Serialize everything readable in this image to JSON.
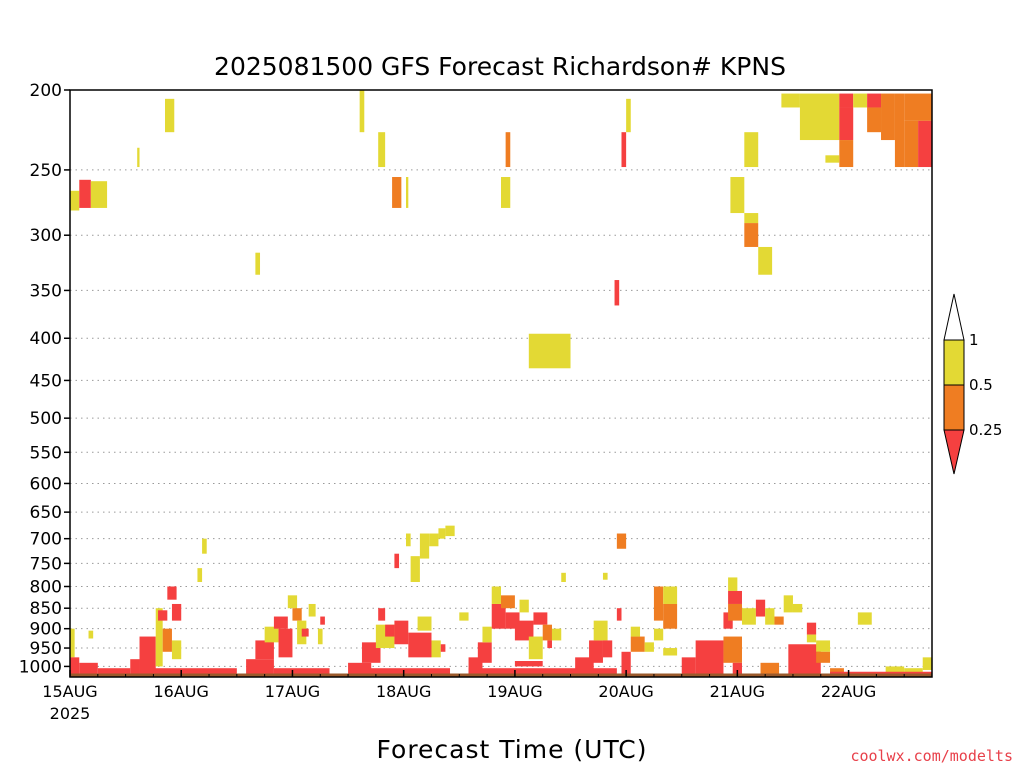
{
  "chart_data": {
    "type": "heatmap",
    "title": "2025081500 GFS Forecast Richardson# KPNS",
    "xlabel": "Forecast Time (UTC)",
    "ylabel": "",
    "credit": "coolwx.com/modelts",
    "x_unit": "hours since 15AUG 00Z",
    "xlim": [
      0,
      186
    ],
    "x_ticks": [
      {
        "label": "15AUG",
        "sublabel": "2025",
        "x": 0
      },
      {
        "label": "16AUG",
        "x": 24
      },
      {
        "label": "17AUG",
        "x": 48
      },
      {
        "label": "18AUG",
        "x": 72
      },
      {
        "label": "19AUG",
        "x": 96
      },
      {
        "label": "20AUG",
        "x": 120
      },
      {
        "label": "21AUG",
        "x": 144
      },
      {
        "label": "22AUG",
        "x": 168
      }
    ],
    "y_axis": "pressure (hPa), log scale, inverted",
    "ylim": [
      1030,
      200
    ],
    "y_ticks": [
      200,
      250,
      300,
      350,
      400,
      450,
      500,
      550,
      600,
      650,
      700,
      750,
      800,
      850,
      900,
      950,
      1000
    ],
    "grid": "dotted horizontal at pressure ticks",
    "colorbar": {
      "placement": "right",
      "levels": [
        "1",
        "0.5",
        "0.25"
      ],
      "bins": [
        {
          "range": "> 1",
          "color": "#ffffff"
        },
        {
          "range": "0.5 - 1",
          "color": "#e3d934"
        },
        {
          "range": "0.25 - 0.5",
          "color": "#ef7d22"
        },
        {
          "range": "< 0.25",
          "color": "#f54040"
        }
      ]
    },
    "ground_color": "#9b5a2c",
    "cells": [
      {
        "x0": 0,
        "x1": 2,
        "p0": 265,
        "p1": 280,
        "c": "y"
      },
      {
        "x0": 2,
        "x1": 4.5,
        "p0": 257,
        "p1": 278,
        "c": "r"
      },
      {
        "x0": 4.5,
        "x1": 8,
        "p0": 258,
        "p1": 278,
        "c": "y"
      },
      {
        "x0": 14.5,
        "x1": 15,
        "p0": 235,
        "p1": 248,
        "c": "y"
      },
      {
        "x0": 20.5,
        "x1": 22.5,
        "p0": 205,
        "p1": 225,
        "c": "y"
      },
      {
        "x0": 40,
        "x1": 41,
        "p0": 315,
        "p1": 335,
        "c": "y"
      },
      {
        "x0": 62.5,
        "x1": 63.5,
        "p0": 200,
        "p1": 225,
        "c": "y"
      },
      {
        "x0": 66.5,
        "x1": 68,
        "p0": 225,
        "p1": 248,
        "c": "y"
      },
      {
        "x0": 69.5,
        "x1": 71.5,
        "p0": 255,
        "p1": 278,
        "c": "o"
      },
      {
        "x0": 72.5,
        "x1": 73,
        "p0": 255,
        "p1": 278,
        "c": "y"
      },
      {
        "x0": 93,
        "x1": 95,
        "p0": 255,
        "p1": 278,
        "c": "y"
      },
      {
        "x0": 94,
        "x1": 95,
        "p0": 225,
        "p1": 248,
        "c": "o"
      },
      {
        "x0": 99,
        "x1": 108,
        "p0": 395,
        "p1": 435,
        "c": "y"
      },
      {
        "x0": 119,
        "x1": 120,
        "p0": 225,
        "p1": 248,
        "c": "r"
      },
      {
        "x0": 120,
        "x1": 121,
        "p0": 205,
        "p1": 225,
        "c": "y"
      },
      {
        "x0": 117.5,
        "x1": 118.5,
        "p0": 340,
        "p1": 365,
        "c": "r"
      },
      {
        "x0": 142.5,
        "x1": 145.5,
        "p0": 255,
        "p1": 282,
        "c": "y"
      },
      {
        "x0": 145.5,
        "x1": 148.5,
        "p0": 225,
        "p1": 248,
        "c": "y"
      },
      {
        "x0": 145.5,
        "x1": 148.5,
        "p0": 282,
        "p1": 290,
        "c": "y"
      },
      {
        "x0": 145.5,
        "x1": 148.5,
        "p0": 290,
        "p1": 310,
        "c": "o"
      },
      {
        "x0": 148.5,
        "x1": 151.5,
        "p0": 310,
        "p1": 335,
        "c": "y"
      },
      {
        "x0": 153.5,
        "x1": 157.5,
        "p0": 202,
        "p1": 210,
        "c": "y"
      },
      {
        "x0": 157.5,
        "x1": 166,
        "p0": 202,
        "p1": 230,
        "c": "y"
      },
      {
        "x0": 166,
        "x1": 169,
        "p0": 202,
        "p1": 210,
        "c": "r"
      },
      {
        "x0": 166,
        "x1": 169,
        "p0": 210,
        "p1": 230,
        "c": "r"
      },
      {
        "x0": 166,
        "x1": 169,
        "p0": 230,
        "p1": 248,
        "c": "o"
      },
      {
        "x0": 169,
        "x1": 172,
        "p0": 202,
        "p1": 210,
        "c": "y"
      },
      {
        "x0": 172,
        "x1": 175,
        "p0": 202,
        "p1": 210,
        "c": "r"
      },
      {
        "x0": 172,
        "x1": 175,
        "p0": 210,
        "p1": 225,
        "c": "o"
      },
      {
        "x0": 175,
        "x1": 178,
        "p0": 202,
        "p1": 230,
        "c": "o"
      },
      {
        "x0": 178,
        "x1": 180,
        "p0": 202,
        "p1": 248,
        "c": "o"
      },
      {
        "x0": 180,
        "x1": 186,
        "p0": 202,
        "p1": 218,
        "c": "o"
      },
      {
        "x0": 180,
        "x1": 183,
        "p0": 218,
        "p1": 248,
        "c": "o"
      },
      {
        "x0": 183,
        "x1": 186,
        "p0": 218,
        "p1": 248,
        "c": "r"
      },
      {
        "x0": 163,
        "x1": 166,
        "p0": 240,
        "p1": 245,
        "c": "y"
      },
      {
        "x0": 28.5,
        "x1": 29.5,
        "p0": 700,
        "p1": 730,
        "c": "y"
      },
      {
        "x0": 27.5,
        "x1": 28.5,
        "p0": 760,
        "p1": 790,
        "c": "y"
      },
      {
        "x0": 70,
        "x1": 71,
        "p0": 730,
        "p1": 760,
        "c": "r"
      },
      {
        "x0": 72.5,
        "x1": 73.5,
        "p0": 690,
        "p1": 715,
        "c": "y"
      },
      {
        "x0": 73.5,
        "x1": 75.5,
        "p0": 735,
        "p1": 790,
        "c": "y"
      },
      {
        "x0": 75.5,
        "x1": 77.5,
        "p0": 690,
        "p1": 740,
        "c": "y"
      },
      {
        "x0": 77.5,
        "x1": 79.5,
        "p0": 690,
        "p1": 715,
        "c": "y"
      },
      {
        "x0": 79.5,
        "x1": 81,
        "p0": 680,
        "p1": 700,
        "c": "y"
      },
      {
        "x0": 81,
        "x1": 83,
        "p0": 675,
        "p1": 695,
        "c": "y"
      },
      {
        "x0": 106,
        "x1": 107,
        "p0": 770,
        "p1": 790,
        "c": "y"
      },
      {
        "x0": 115,
        "x1": 116,
        "p0": 770,
        "p1": 785,
        "c": "y"
      },
      {
        "x0": 118,
        "x1": 120,
        "p0": 690,
        "p1": 720,
        "c": "o"
      },
      {
        "x0": 0,
        "x1": 1,
        "p0": 900,
        "p1": 975,
        "c": "y"
      },
      {
        "x0": 0,
        "x1": 2,
        "p0": 975,
        "p1": 1020,
        "c": "r"
      },
      {
        "x0": 2,
        "x1": 6,
        "p0": 990,
        "p1": 1020,
        "c": "r"
      },
      {
        "x0": 4,
        "x1": 5,
        "p0": 905,
        "p1": 925,
        "c": "y"
      },
      {
        "x0": 6,
        "x1": 13,
        "p0": 1005,
        "p1": 1020,
        "c": "r"
      },
      {
        "x0": 13,
        "x1": 15,
        "p0": 980,
        "p1": 1020,
        "c": "r"
      },
      {
        "x0": 15,
        "x1": 18.5,
        "p0": 920,
        "p1": 1020,
        "c": "r"
      },
      {
        "x0": 18.5,
        "x1": 20,
        "p0": 850,
        "p1": 1000,
        "c": "y"
      },
      {
        "x0": 19,
        "x1": 21,
        "p0": 855,
        "p1": 880,
        "c": "r"
      },
      {
        "x0": 20,
        "x1": 22,
        "p0": 900,
        "p1": 960,
        "c": "o"
      },
      {
        "x0": 21,
        "x1": 23,
        "p0": 800,
        "p1": 830,
        "c": "r"
      },
      {
        "x0": 22,
        "x1": 24,
        "p0": 840,
        "p1": 880,
        "c": "r"
      },
      {
        "x0": 22,
        "x1": 24,
        "p0": 930,
        "p1": 980,
        "c": "y"
      },
      {
        "x0": 18,
        "x1": 36,
        "p0": 1005,
        "p1": 1020,
        "c": "r"
      },
      {
        "x0": 38,
        "x1": 44,
        "p0": 980,
        "p1": 1020,
        "c": "r"
      },
      {
        "x0": 40,
        "x1": 44,
        "p0": 930,
        "p1": 980,
        "c": "r"
      },
      {
        "x0": 42,
        "x1": 45,
        "p0": 895,
        "p1": 935,
        "c": "y"
      },
      {
        "x0": 44,
        "x1": 47,
        "p0": 870,
        "p1": 900,
        "c": "r"
      },
      {
        "x0": 45,
        "x1": 48,
        "p0": 900,
        "p1": 975,
        "c": "r"
      },
      {
        "x0": 47,
        "x1": 49,
        "p0": 820,
        "p1": 850,
        "c": "y"
      },
      {
        "x0": 48,
        "x1": 50,
        "p0": 850,
        "p1": 880,
        "c": "o"
      },
      {
        "x0": 49,
        "x1": 51,
        "p0": 880,
        "p1": 940,
        "c": "y"
      },
      {
        "x0": 50,
        "x1": 51.5,
        "p0": 900,
        "p1": 920,
        "c": "r"
      },
      {
        "x0": 51.5,
        "x1": 53,
        "p0": 840,
        "p1": 870,
        "c": "y"
      },
      {
        "x0": 44,
        "x1": 56,
        "p0": 1005,
        "p1": 1020,
        "c": "r"
      },
      {
        "x0": 53.5,
        "x1": 54.5,
        "p0": 900,
        "p1": 940,
        "c": "y"
      },
      {
        "x0": 54,
        "x1": 55,
        "p0": 870,
        "p1": 890,
        "c": "r"
      },
      {
        "x0": 60,
        "x1": 65,
        "p0": 990,
        "p1": 1020,
        "c": "r"
      },
      {
        "x0": 63,
        "x1": 67,
        "p0": 935,
        "p1": 990,
        "c": "r"
      },
      {
        "x0": 66,
        "x1": 70,
        "p0": 890,
        "p1": 950,
        "c": "y"
      },
      {
        "x0": 66.5,
        "x1": 68,
        "p0": 850,
        "p1": 880,
        "c": "r"
      },
      {
        "x0": 68,
        "x1": 70,
        "p0": 890,
        "p1": 920,
        "c": "r"
      },
      {
        "x0": 70,
        "x1": 73,
        "p0": 880,
        "p1": 940,
        "c": "r"
      },
      {
        "x0": 73,
        "x1": 78,
        "p0": 910,
        "p1": 975,
        "c": "r"
      },
      {
        "x0": 75,
        "x1": 78,
        "p0": 870,
        "p1": 905,
        "c": "y"
      },
      {
        "x0": 78,
        "x1": 80,
        "p0": 930,
        "p1": 975,
        "c": "y"
      },
      {
        "x0": 80,
        "x1": 81,
        "p0": 940,
        "p1": 960,
        "c": "r"
      },
      {
        "x0": 62,
        "x1": 82,
        "p0": 1005,
        "p1": 1020,
        "c": "r"
      },
      {
        "x0": 84,
        "x1": 86,
        "p0": 860,
        "p1": 880,
        "c": "y"
      },
      {
        "x0": 86,
        "x1": 89,
        "p0": 975,
        "p1": 1020,
        "c": "r"
      },
      {
        "x0": 88,
        "x1": 91,
        "p0": 935,
        "p1": 990,
        "c": "r"
      },
      {
        "x0": 89,
        "x1": 91,
        "p0": 895,
        "p1": 935,
        "c": "y"
      },
      {
        "x0": 91,
        "x1": 94,
        "p0": 840,
        "p1": 900,
        "c": "r"
      },
      {
        "x0": 91,
        "x1": 93,
        "p0": 800,
        "p1": 840,
        "c": "y"
      },
      {
        "x0": 93,
        "x1": 96,
        "p0": 820,
        "p1": 850,
        "c": "o"
      },
      {
        "x0": 94,
        "x1": 97,
        "p0": 860,
        "p1": 900,
        "c": "r"
      },
      {
        "x0": 96,
        "x1": 100,
        "p0": 880,
        "p1": 930,
        "c": "r"
      },
      {
        "x0": 97,
        "x1": 99,
        "p0": 830,
        "p1": 860,
        "c": "y"
      },
      {
        "x0": 99,
        "x1": 102,
        "p0": 920,
        "p1": 980,
        "c": "y"
      },
      {
        "x0": 100,
        "x1": 103,
        "p0": 860,
        "p1": 890,
        "c": "r"
      },
      {
        "x0": 102,
        "x1": 104,
        "p0": 890,
        "p1": 930,
        "c": "o"
      },
      {
        "x0": 104,
        "x1": 106,
        "p0": 900,
        "p1": 930,
        "c": "y"
      },
      {
        "x0": 103,
        "x1": 104,
        "p0": 930,
        "p1": 950,
        "c": "r"
      },
      {
        "x0": 96,
        "x1": 102,
        "p0": 985,
        "p1": 1000,
        "c": "r"
      },
      {
        "x0": 86,
        "x1": 118,
        "p0": 1005,
        "p1": 1020,
        "c": "r"
      },
      {
        "x0": 109,
        "x1": 113,
        "p0": 975,
        "p1": 1020,
        "c": "r"
      },
      {
        "x0": 112,
        "x1": 115,
        "p0": 930,
        "p1": 990,
        "c": "r"
      },
      {
        "x0": 113,
        "x1": 116,
        "p0": 880,
        "p1": 930,
        "c": "y"
      },
      {
        "x0": 115,
        "x1": 117,
        "p0": 930,
        "p1": 975,
        "c": "r"
      },
      {
        "x0": 118,
        "x1": 119,
        "p0": 850,
        "p1": 880,
        "c": "r"
      },
      {
        "x0": 119,
        "x1": 121,
        "p0": 960,
        "p1": 1020,
        "c": "r"
      },
      {
        "x0": 121,
        "x1": 124,
        "p0": 920,
        "p1": 960,
        "c": "o"
      },
      {
        "x0": 121,
        "x1": 123,
        "p0": 895,
        "p1": 920,
        "c": "y"
      },
      {
        "x0": 124,
        "x1": 126,
        "p0": 935,
        "p1": 960,
        "c": "y"
      },
      {
        "x0": 126,
        "x1": 128,
        "p0": 800,
        "p1": 880,
        "c": "o"
      },
      {
        "x0": 128,
        "x1": 131,
        "p0": 800,
        "p1": 840,
        "c": "y"
      },
      {
        "x0": 128,
        "x1": 131,
        "p0": 840,
        "p1": 900,
        "c": "o"
      },
      {
        "x0": 126,
        "x1": 128,
        "p0": 900,
        "p1": 930,
        "c": "y"
      },
      {
        "x0": 128,
        "x1": 131,
        "p0": 950,
        "p1": 970,
        "c": "y"
      },
      {
        "x0": 132,
        "x1": 135,
        "p0": 975,
        "p1": 1020,
        "c": "r"
      },
      {
        "x0": 135,
        "x1": 141,
        "p0": 930,
        "p1": 1020,
        "c": "r"
      },
      {
        "x0": 141,
        "x1": 143,
        "p0": 860,
        "p1": 900,
        "c": "r"
      },
      {
        "x0": 142,
        "x1": 144,
        "p0": 780,
        "p1": 810,
        "c": "y"
      },
      {
        "x0": 142,
        "x1": 145,
        "p0": 810,
        "p1": 840,
        "c": "r"
      },
      {
        "x0": 142,
        "x1": 145,
        "p0": 840,
        "p1": 880,
        "c": "o"
      },
      {
        "x0": 145,
        "x1": 148,
        "p0": 850,
        "p1": 890,
        "c": "y"
      },
      {
        "x0": 141,
        "x1": 145,
        "p0": 920,
        "p1": 990,
        "c": "o"
      },
      {
        "x0": 143,
        "x1": 145,
        "p0": 990,
        "p1": 1020,
        "c": "r"
      },
      {
        "x0": 148,
        "x1": 150,
        "p0": 830,
        "p1": 870,
        "c": "r"
      },
      {
        "x0": 150,
        "x1": 152,
        "p0": 850,
        "p1": 890,
        "c": "y"
      },
      {
        "x0": 152,
        "x1": 154,
        "p0": 870,
        "p1": 890,
        "c": "o"
      },
      {
        "x0": 154,
        "x1": 156,
        "p0": 820,
        "p1": 860,
        "c": "y"
      },
      {
        "x0": 156,
        "x1": 158,
        "p0": 840,
        "p1": 860,
        "c": "y"
      },
      {
        "x0": 149,
        "x1": 153,
        "p0": 990,
        "p1": 1020,
        "c": "o"
      },
      {
        "x0": 155,
        "x1": 162,
        "p0": 940,
        "p1": 1020,
        "c": "r"
      },
      {
        "x0": 159,
        "x1": 161,
        "p0": 885,
        "p1": 915,
        "c": "r"
      },
      {
        "x0": 159,
        "x1": 161,
        "p0": 915,
        "p1": 935,
        "c": "y"
      },
      {
        "x0": 161,
        "x1": 164,
        "p0": 930,
        "p1": 960,
        "c": "y"
      },
      {
        "x0": 161,
        "x1": 164,
        "p0": 960,
        "p1": 990,
        "c": "o"
      },
      {
        "x0": 164,
        "x1": 167,
        "p0": 1005,
        "p1": 1020,
        "c": "o"
      },
      {
        "x0": 170,
        "x1": 173,
        "p0": 860,
        "p1": 890,
        "c": "y"
      },
      {
        "x0": 176,
        "x1": 180,
        "p0": 1000,
        "p1": 1020,
        "c": "y"
      },
      {
        "x0": 184,
        "x1": 186,
        "p0": 975,
        "p1": 1010,
        "c": "y"
      },
      {
        "x0": 180,
        "x1": 184,
        "p0": 1005,
        "p1": 1020,
        "c": "y"
      },
      {
        "x0": 164,
        "x1": 186,
        "p0": 1015,
        "p1": 1020,
        "c": "r"
      }
    ]
  }
}
